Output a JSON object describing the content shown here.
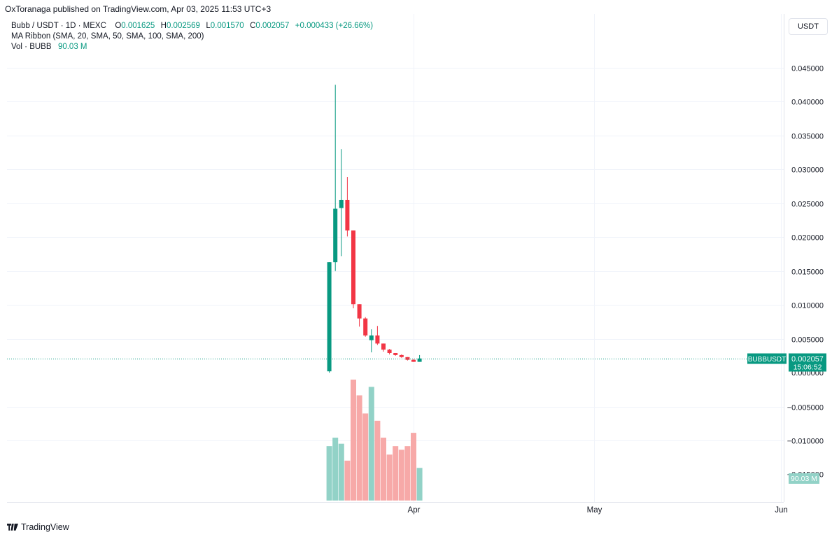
{
  "publisher": "OxToranaga published on TradingView.com, Apr 03, 2025 11:53 UTC+3",
  "legend": {
    "symbol": "Bubb / USDT · 1D · MEXC",
    "o_label": "O",
    "o_value": "0.001625",
    "h_label": "H",
    "h_value": "0.002569",
    "l_label": "L",
    "l_value": "0.001570",
    "c_label": "C",
    "c_value": "0.002057",
    "change": "+0.000433 (+26.66%)",
    "ma_ribbon": "MA Ribbon (SMA, 20, SMA, 50, SMA, 100, SMA, 200)",
    "vol_label": "Vol · BUBB",
    "vol_value": "90.03 M"
  },
  "currency_label": "USDT",
  "footer_brand": "TradingView",
  "colors": {
    "up": "#089981",
    "down": "#f23645",
    "vol_up": "#92d2c7",
    "vol_down": "#f7a9a8",
    "grid": "#f0f3fa"
  },
  "chart_data": {
    "type": "candlestick",
    "symbol": "BUBBUSDT",
    "timeframe": "1D",
    "ylim": [
      -0.019,
      0.048
    ],
    "y_ticks": [
      0.045,
      0.04,
      0.035,
      0.03,
      0.025,
      0.02,
      0.015,
      0.01,
      0.005,
      -0.005,
      -0.01
    ],
    "y_tick_labels": [
      "0.045000",
      "0.040000",
      "0.035000",
      "0.030000",
      "0.025000",
      "0.020000",
      "0.015000",
      "0.010000",
      "0.005000",
      "−0.005000",
      "−0.010000"
    ],
    "x_labels": [
      "Apr",
      "May",
      "Jun"
    ],
    "x_label_dates": [
      "2025-04-01",
      "2025-05-01",
      "2025-06-01"
    ],
    "candles": [
      {
        "date": "2025-03-18",
        "o": 0.0002,
        "h": 0.0163,
        "l": 0.0,
        "c": 0.0163
      },
      {
        "date": "2025-03-19",
        "o": 0.0163,
        "h": 0.0425,
        "l": 0.015,
        "c": 0.0242
      },
      {
        "date": "2025-03-20",
        "o": 0.0243,
        "h": 0.033,
        "l": 0.0172,
        "c": 0.0255
      },
      {
        "date": "2025-03-21",
        "o": 0.0255,
        "h": 0.0289,
        "l": 0.0201,
        "c": 0.021
      },
      {
        "date": "2025-03-22",
        "o": 0.021,
        "h": 0.021,
        "l": 0.0095,
        "c": 0.0101
      },
      {
        "date": "2025-03-23",
        "o": 0.0101,
        "h": 0.0101,
        "l": 0.0068,
        "c": 0.008
      },
      {
        "date": "2025-03-24",
        "o": 0.008,
        "h": 0.0082,
        "l": 0.0053,
        "c": 0.0055
      },
      {
        "date": "2025-03-25",
        "o": 0.0048,
        "h": 0.0064,
        "l": 0.003,
        "c": 0.0055
      },
      {
        "date": "2025-03-26",
        "o": 0.0055,
        "h": 0.0069,
        "l": 0.0041,
        "c": 0.0043
      },
      {
        "date": "2025-03-27",
        "o": 0.0043,
        "h": 0.0043,
        "l": 0.0031,
        "c": 0.0034
      },
      {
        "date": "2025-03-28",
        "o": 0.0034,
        "h": 0.0035,
        "l": 0.0027,
        "c": 0.0029
      },
      {
        "date": "2025-03-29",
        "o": 0.0029,
        "h": 0.0029,
        "l": 0.0025,
        "c": 0.0026
      },
      {
        "date": "2025-03-30",
        "o": 0.0026,
        "h": 0.0027,
        "l": 0.0022,
        "c": 0.0023
      },
      {
        "date": "2025-03-31",
        "o": 0.0023,
        "h": 0.0023,
        "l": 0.0018,
        "c": 0.0019
      },
      {
        "date": "2025-04-01",
        "o": 0.0019,
        "h": 0.002,
        "l": 0.0016,
        "c": 0.0016
      },
      {
        "date": "2025-04-02",
        "o": 0.0016,
        "h": 0.0026,
        "l": 0.0016,
        "c": 0.0021
      }
    ],
    "volume_series_name": "Vol · BUBB",
    "volume_rel": [
      0.45,
      0.52,
      0.47,
      0.33,
      1.0,
      0.87,
      0.72,
      0.94,
      0.66,
      0.52,
      0.38,
      0.45,
      0.42,
      0.45,
      0.56,
      0.27
    ],
    "last_price_label": "BUBBUSDT",
    "last_price": "0.002057",
    "countdown": "15:06:52",
    "last_volume_label": "90.03 M",
    "partially_visible_tick_labels": [
      "0.000000",
      "−0.015000"
    ]
  }
}
